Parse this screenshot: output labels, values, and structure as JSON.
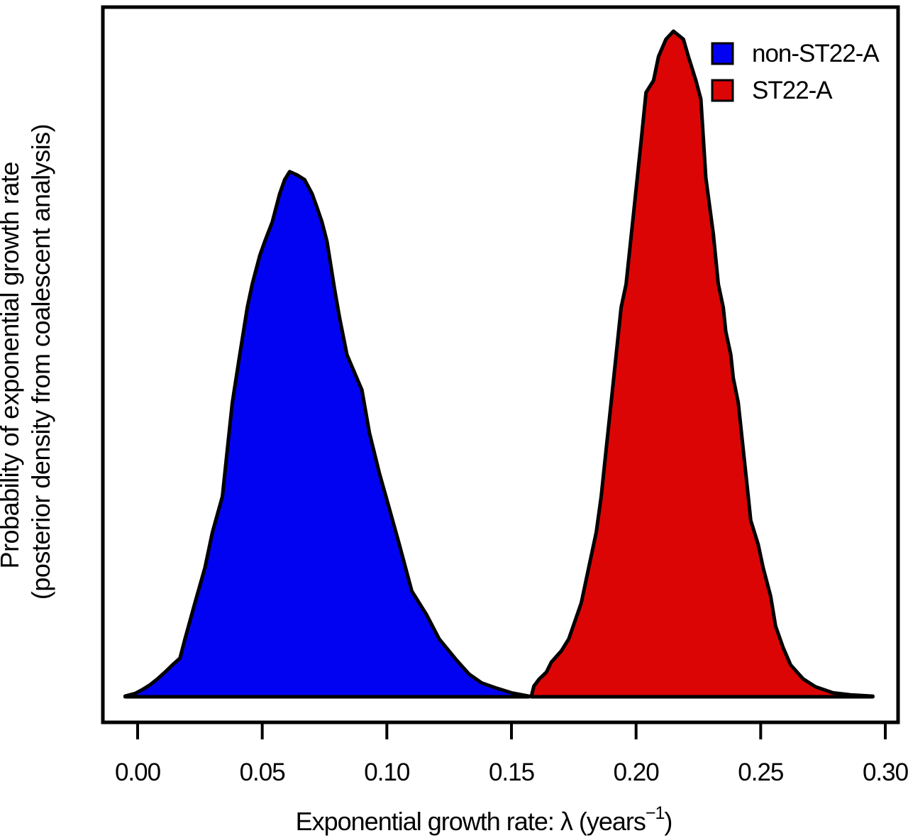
{
  "chart_data": {
    "type": "area",
    "title": "",
    "xlabel": "Exponential growth rate: λ (years⁻¹)",
    "xlabel_main": "Exponential growth rate: λ (years",
    "xlabel_sup": "−1",
    "xlabel_close": ")",
    "ylabel_line1": "Probability of exponential growth rate",
    "ylabel_line2": "(posterior density from coalescent analysis)",
    "xlim": [
      0,
      0.3
    ],
    "x_ticks": [
      0.0,
      0.05,
      0.1,
      0.15,
      0.2,
      0.25,
      0.3
    ],
    "x_tick_labels": [
      "0.00",
      "0.05",
      "0.10",
      "0.15",
      "0.20",
      "0.25",
      "0.30"
    ],
    "ylim": [
      0,
      1.05
    ],
    "grid": false,
    "legend_position": "top-right",
    "axis_color": "#000000",
    "background_color": "#ffffff",
    "series": [
      {
        "name": "non-ST22-A",
        "color": "#0202F2",
        "peak_x": 0.061,
        "peak_density": 0.789,
        "points": [
          [
            -0.005,
            0.001
          ],
          [
            -0.001,
            0.005
          ],
          [
            0.002,
            0.011
          ],
          [
            0.005,
            0.018
          ],
          [
            0.008,
            0.027
          ],
          [
            0.011,
            0.037
          ],
          [
            0.014,
            0.048
          ],
          [
            0.017,
            0.058
          ],
          [
            0.019,
            0.087
          ],
          [
            0.023,
            0.141
          ],
          [
            0.027,
            0.194
          ],
          [
            0.03,
            0.247
          ],
          [
            0.034,
            0.301
          ],
          [
            0.036,
            0.372
          ],
          [
            0.038,
            0.442
          ],
          [
            0.041,
            0.514
          ],
          [
            0.044,
            0.585
          ],
          [
            0.046,
            0.62
          ],
          [
            0.049,
            0.663
          ],
          [
            0.051,
            0.684
          ],
          [
            0.054,
            0.713
          ],
          [
            0.057,
            0.756
          ],
          [
            0.059,
            0.777
          ],
          [
            0.061,
            0.789
          ],
          [
            0.064,
            0.784
          ],
          [
            0.067,
            0.777
          ],
          [
            0.07,
            0.756
          ],
          [
            0.072,
            0.735
          ],
          [
            0.074,
            0.713
          ],
          [
            0.076,
            0.684
          ],
          [
            0.079,
            0.613
          ],
          [
            0.081,
            0.57
          ],
          [
            0.084,
            0.514
          ],
          [
            0.09,
            0.461
          ],
          [
            0.093,
            0.397
          ],
          [
            0.097,
            0.336
          ],
          [
            0.101,
            0.283
          ],
          [
            0.105,
            0.229
          ],
          [
            0.11,
            0.159
          ],
          [
            0.116,
            0.123
          ],
          [
            0.121,
            0.087
          ],
          [
            0.128,
            0.055
          ],
          [
            0.133,
            0.034
          ],
          [
            0.138,
            0.021
          ],
          [
            0.144,
            0.013
          ],
          [
            0.15,
            0.006
          ],
          [
            0.157,
            0.001
          ]
        ]
      },
      {
        "name": "ST22-A",
        "color": "#DC0505",
        "peak_x": 0.215,
        "peak_density": 1.0,
        "points": [
          [
            0.158,
            0.001
          ],
          [
            0.159,
            0.016
          ],
          [
            0.161,
            0.026
          ],
          [
            0.164,
            0.037
          ],
          [
            0.166,
            0.052
          ],
          [
            0.17,
            0.069
          ],
          [
            0.173,
            0.087
          ],
          [
            0.178,
            0.141
          ],
          [
            0.181,
            0.194
          ],
          [
            0.184,
            0.247
          ],
          [
            0.186,
            0.301
          ],
          [
            0.188,
            0.372
          ],
          [
            0.19,
            0.442
          ],
          [
            0.192,
            0.514
          ],
          [
            0.194,
            0.585
          ],
          [
            0.196,
            0.62
          ],
          [
            0.199,
            0.727
          ],
          [
            0.202,
            0.834
          ],
          [
            0.204,
            0.908
          ],
          [
            0.207,
            0.926
          ],
          [
            0.209,
            0.962
          ],
          [
            0.212,
            0.988
          ],
          [
            0.215,
            1.0
          ],
          [
            0.219,
            0.988
          ],
          [
            0.221,
            0.962
          ],
          [
            0.224,
            0.926
          ],
          [
            0.226,
            0.898
          ],
          [
            0.228,
            0.78
          ],
          [
            0.231,
            0.695
          ],
          [
            0.233,
            0.62
          ],
          [
            0.235,
            0.585
          ],
          [
            0.236,
            0.549
          ],
          [
            0.238,
            0.514
          ],
          [
            0.239,
            0.479
          ],
          [
            0.241,
            0.442
          ],
          [
            0.242,
            0.407
          ],
          [
            0.243,
            0.372
          ],
          [
            0.244,
            0.336
          ],
          [
            0.245,
            0.301
          ],
          [
            0.246,
            0.265
          ],
          [
            0.249,
            0.229
          ],
          [
            0.251,
            0.194
          ],
          [
            0.254,
            0.151
          ],
          [
            0.256,
            0.106
          ],
          [
            0.259,
            0.074
          ],
          [
            0.262,
            0.048
          ],
          [
            0.267,
            0.027
          ],
          [
            0.272,
            0.015
          ],
          [
            0.279,
            0.006
          ],
          [
            0.286,
            0.003
          ],
          [
            0.295,
            0.001
          ]
        ]
      }
    ]
  }
}
